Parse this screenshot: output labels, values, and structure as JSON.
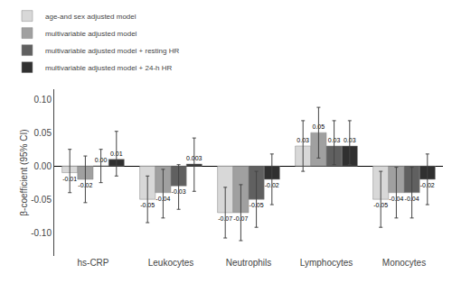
{
  "chart_data": {
    "type": "bar",
    "categories": [
      "hs-CRP",
      "Leukocytes",
      "Neutrophils",
      "Lymphocytes",
      "Monocytes"
    ],
    "ylabel": "β-coefficient (95% CI)",
    "ylim": [
      -0.135,
      0.115
    ],
    "yticks": [
      {
        "value": -0.1,
        "label": "-0.10"
      },
      -0.05,
      {
        "value": 0,
        "label": "0.00"
      },
      0.05,
      {
        "value": 0.1,
        "label": "0.10"
      }
    ],
    "grid": false,
    "legend": "upper left",
    "data_labels": true,
    "series": [
      {
        "name": "age-and sex adjusted model",
        "color": "#d8d8d8",
        "values": [
          -0.01,
          -0.05,
          -0.07,
          0.03,
          -0.05
        ],
        "value_labels": [
          "-0.01",
          "-0.05",
          "-0.07",
          "0.03",
          "-0.05"
        ],
        "ci_low": [
          -0.04,
          -0.085,
          -0.108,
          -0.008,
          -0.092
        ],
        "ci_high": [
          0.025,
          -0.015,
          -0.032,
          0.068,
          -0.008
        ]
      },
      {
        "name": "multivariable adjusted model",
        "color": "#a0a0a0",
        "values": [
          -0.02,
          -0.04,
          -0.07,
          0.05,
          -0.04
        ],
        "value_labels": [
          "-0.02",
          "-0.04",
          "-0.07",
          "0.05",
          "-0.04"
        ],
        "ci_low": [
          -0.055,
          -0.078,
          -0.112,
          0.012,
          -0.078
        ],
        "ci_high": [
          0.015,
          -0.005,
          -0.028,
          0.088,
          -0.002
        ]
      },
      {
        "name": "multivariable adjusted model + resting HR",
        "color": "#606060",
        "values": [
          0.0,
          -0.03,
          -0.05,
          0.03,
          -0.04
        ],
        "value_labels": [
          "0.00",
          "-0.03",
          "-0.05",
          "0.03",
          "-0.04"
        ],
        "ci_low": [
          -0.025,
          -0.065,
          -0.092,
          0.002,
          -0.078
        ],
        "ci_high": [
          0.025,
          0.002,
          -0.008,
          0.068,
          -0.002
        ]
      },
      {
        "name": "multivariable adjusted model + 24-h HR",
        "color": "#303030",
        "values": [
          0.01,
          0.003,
          -0.02,
          0.03,
          -0.02
        ],
        "value_labels": [
          "0.01",
          "0.003",
          "-0.02",
          "0.03",
          "-0.02"
        ],
        "ci_low": [
          -0.015,
          -0.038,
          -0.058,
          0.002,
          -0.058
        ],
        "ci_high": [
          0.052,
          0.042,
          0.018,
          0.068,
          0.018
        ]
      }
    ]
  }
}
